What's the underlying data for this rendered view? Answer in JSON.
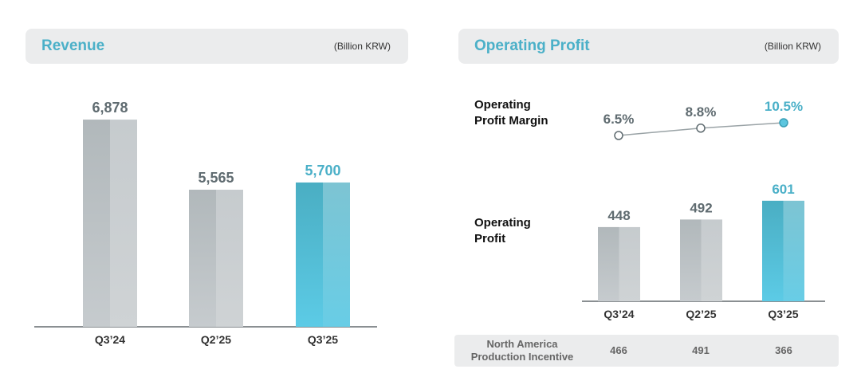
{
  "revenue": {
    "title": "Revenue",
    "unit": "(Billion KRW)"
  },
  "operating_profit": {
    "title": "Operating Profit",
    "unit": "(Billion KRW)",
    "margin_label": "Operating Profit Margin",
    "profit_label": "Operating Profit"
  },
  "incentive": {
    "label": "North America Production Incentive",
    "values": [
      "466",
      "491",
      "366"
    ]
  },
  "colors": {
    "accent": "#4bb0c8",
    "gray_bar": "#bfc5c8",
    "label_gray": "#5f6b70"
  },
  "chart_data": [
    {
      "type": "bar",
      "title": "Revenue",
      "ylabel": "Billion KRW",
      "categories": [
        "Q3’24",
        "Q2’25",
        "Q3’25"
      ],
      "values": [
        6878,
        5565,
        5700
      ],
      "labels": [
        "6,878",
        "5,565",
        "5,700"
      ],
      "highlight": 2
    },
    {
      "type": "bar",
      "title": "Operating Profit",
      "ylabel": "Billion KRW",
      "categories": [
        "Q3’24",
        "Q2’25",
        "Q3’25"
      ],
      "values": [
        448,
        492,
        601
      ],
      "labels": [
        "448",
        "492",
        "601"
      ],
      "highlight": 2
    },
    {
      "type": "line",
      "title": "Operating Profit Margin",
      "categories": [
        "Q3’24",
        "Q2’25",
        "Q3’25"
      ],
      "values": [
        6.5,
        8.8,
        10.5
      ],
      "labels": [
        "6.5%",
        "8.8%",
        "10.5%"
      ],
      "unit": "%"
    }
  ]
}
